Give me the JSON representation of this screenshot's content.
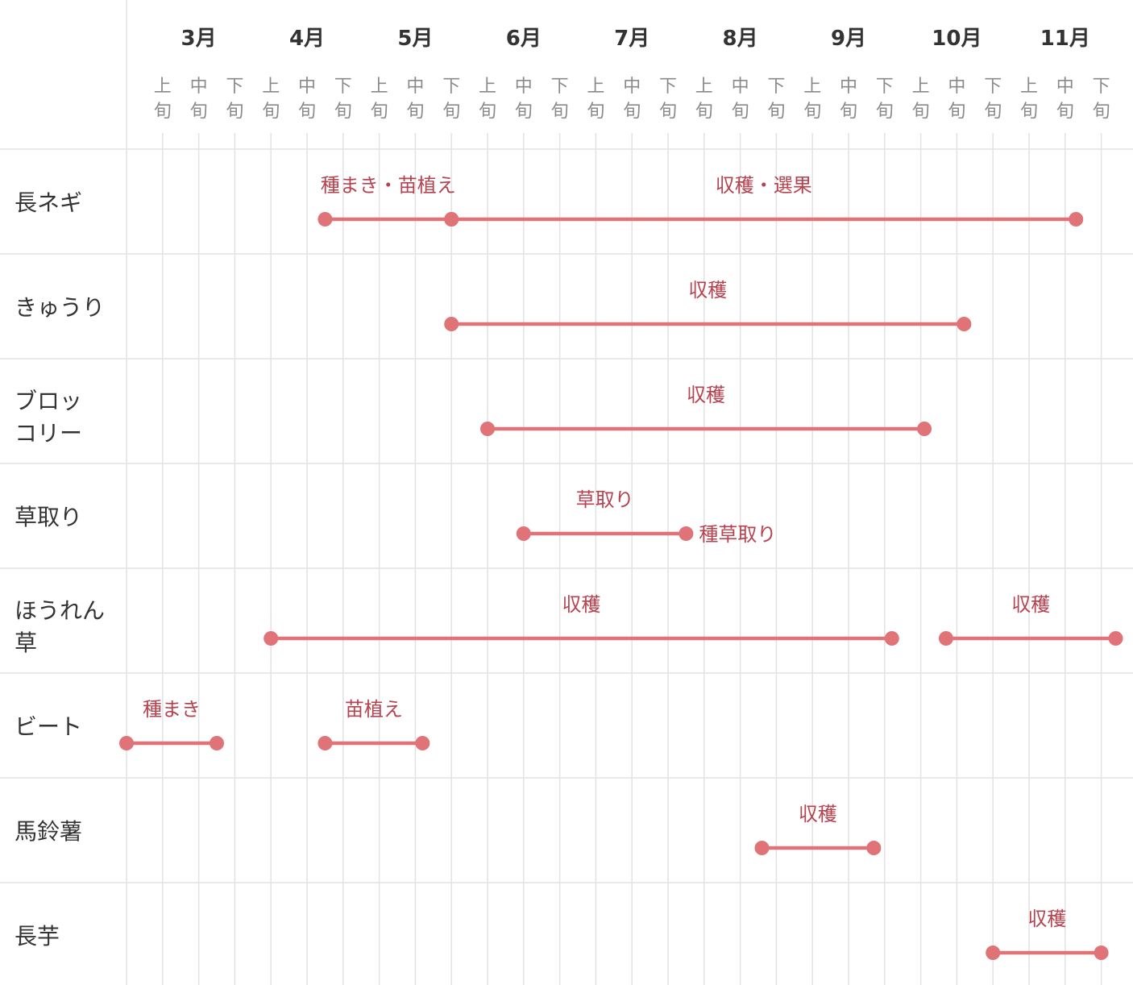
{
  "chart_data": {
    "type": "gantt",
    "months": [
      "3月",
      "4月",
      "5月",
      "6月",
      "7月",
      "8月",
      "9月",
      "10月",
      "11月"
    ],
    "periods": [
      "上旬",
      "中旬",
      "下旬"
    ],
    "rows": [
      {
        "label": [
          "長ネギ"
        ],
        "segments": [
          {
            "start": 5.5,
            "end": 9.0,
            "label": "種まき・苗植え",
            "label_align": "middle"
          },
          {
            "start": 9.0,
            "end": 26.3,
            "label": "収穫・選果",
            "label_align": "middle"
          }
        ]
      },
      {
        "label": [
          "きゅうり"
        ],
        "segments": [
          {
            "start": 9.0,
            "end": 23.2,
            "label": "収穫",
            "label_align": "middle"
          }
        ]
      },
      {
        "label": [
          "ブロッ",
          "コリー"
        ],
        "segments": [
          {
            "start": 10.0,
            "end": 22.1,
            "label": "収穫",
            "label_align": "middle"
          }
        ]
      },
      {
        "label": [
          "草取り"
        ],
        "segments": [
          {
            "start": 11.0,
            "end": 15.5,
            "label": "草取り",
            "label_align": "middle",
            "secondary_label": "種草取り"
          }
        ]
      },
      {
        "label": [
          "ほうれん",
          "草"
        ],
        "segments": [
          {
            "start": 4.0,
            "end": 21.2,
            "label": "収穫",
            "label_align": "middle"
          },
          {
            "start": 22.7,
            "end": 27.4,
            "label": "収穫",
            "label_align": "middle"
          }
        ]
      },
      {
        "label": [
          "ビート"
        ],
        "segments": [
          {
            "start": 0.0,
            "end": 2.5,
            "label": "種まき",
            "label_align": "middle"
          },
          {
            "start": 5.5,
            "end": 8.2,
            "label": "苗植え",
            "label_align": "middle"
          }
        ]
      },
      {
        "label": [
          "馬鈴薯"
        ],
        "segments": [
          {
            "start": 17.6,
            "end": 20.7,
            "label": "収穫",
            "label_align": "middle"
          }
        ]
      },
      {
        "label": [
          "長芋"
        ],
        "segments": [
          {
            "start": 24.0,
            "end": 27.0,
            "label": "収穫",
            "label_align": "middle"
          }
        ]
      }
    ],
    "colors": {
      "segment": "#e07378",
      "label": "#b6424f",
      "grid": "#e2e2e2"
    }
  }
}
